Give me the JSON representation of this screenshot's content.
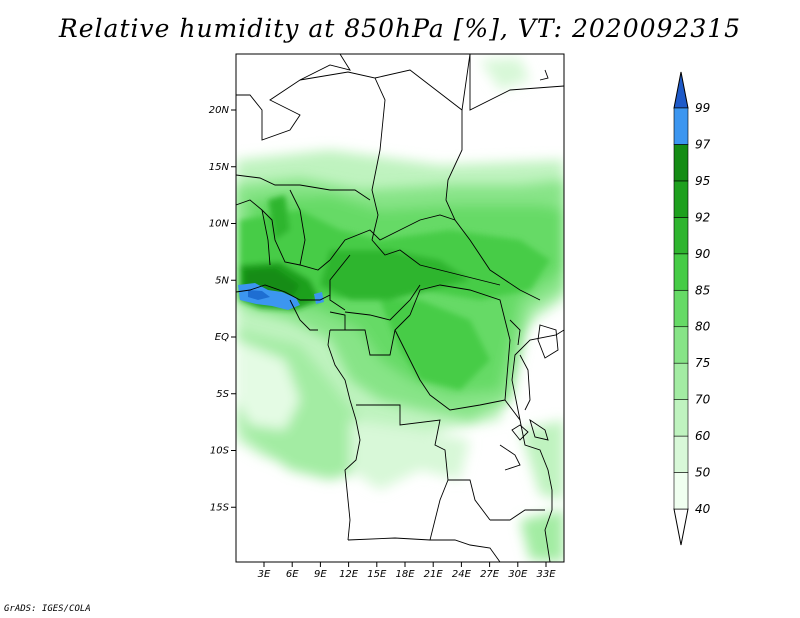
{
  "title": "Relative humidity at 850hPa [%], VT: 2020092315",
  "credit": "GrADS: IGES/COLA",
  "map": {
    "lat_range": [
      -20,
      25
    ],
    "lon_range": [
      0,
      36
    ],
    "lat_labels": [
      {
        "lat": 20,
        "label": "20N"
      },
      {
        "lat": 15,
        "label": "15N"
      },
      {
        "lat": 10,
        "label": "10N"
      },
      {
        "lat": 5,
        "label": "5N"
      },
      {
        "lat": 0,
        "label": "EQ"
      },
      {
        "lat": -5,
        "label": "5S"
      },
      {
        "lat": -10,
        "label": "10S"
      },
      {
        "lat": -15,
        "label": "15S"
      }
    ],
    "lon_labels": [
      {
        "lon": 3,
        "label": "3E"
      },
      {
        "lon": 6,
        "label": "6E"
      },
      {
        "lon": 9,
        "label": "9E"
      },
      {
        "lon": 12,
        "label": "12E"
      },
      {
        "lon": 15,
        "label": "15E"
      },
      {
        "lon": 18,
        "label": "18E"
      },
      {
        "lon": 21,
        "label": "21E"
      },
      {
        "lon": 24,
        "label": "24E"
      },
      {
        "lon": 27,
        "label": "27E"
      },
      {
        "lon": 30,
        "label": "30E"
      },
      {
        "lon": 33,
        "label": "33E"
      }
    ]
  },
  "colorbar": {
    "levels": [
      {
        "label": "40",
        "color": "#f0fff0"
      },
      {
        "label": "50",
        "color": "#d8f8d8"
      },
      {
        "label": "60",
        "color": "#bff3bf"
      },
      {
        "label": "70",
        "color": "#a3eca3"
      },
      {
        "label": "75",
        "color": "#87e487"
      },
      {
        "label": "80",
        "color": "#66da66"
      },
      {
        "label": "85",
        "color": "#46cc46"
      },
      {
        "label": "90",
        "color": "#2fb52f"
      },
      {
        "label": "92",
        "color": "#1ea01e"
      },
      {
        "label": "95",
        "color": "#148c14"
      },
      {
        "label": "97",
        "color": "#3c96f0"
      },
      {
        "label": "99",
        "color": "#1e6ed2"
      }
    ],
    "top_color": "#1e5ac8",
    "bottom_color": "#ffffff"
  }
}
